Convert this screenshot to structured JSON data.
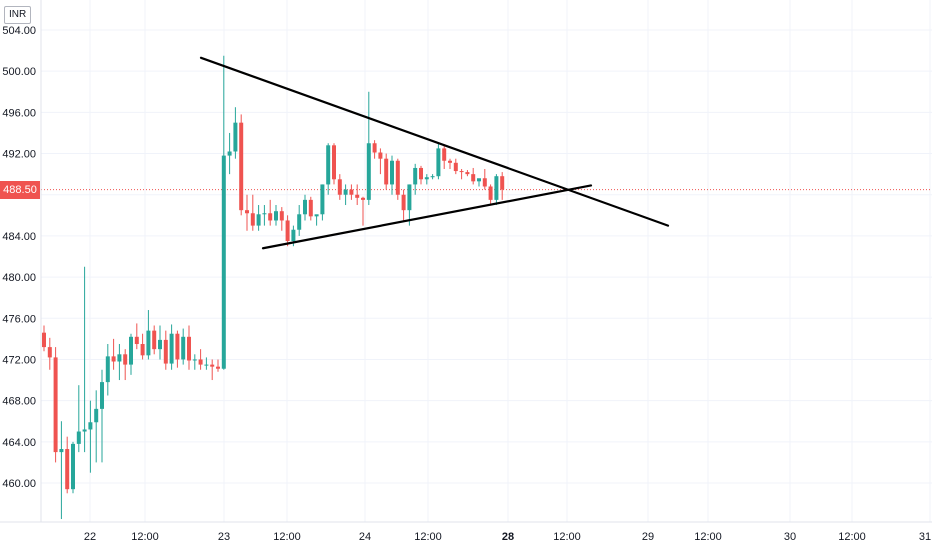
{
  "chart_data": {
    "type": "candlestick",
    "currency": "INR",
    "current_price": "488.50",
    "colors": {
      "up": "#26a69a",
      "down": "#ef5350",
      "trendline": "#000000",
      "price_line": "#ef5350",
      "grid": "#f0f3fa"
    },
    "ylim": [
      456.5,
      505.5
    ],
    "y_ticks": [
      460,
      464,
      468,
      472,
      476,
      480,
      484,
      488,
      492,
      496,
      500,
      504
    ],
    "y_tick_labels": [
      "460.00",
      "464.00",
      "468.00",
      "472.00",
      "476.00",
      "480.00",
      "484.00",
      "488.00",
      "492.00",
      "496.00",
      "500.00",
      "504.00"
    ],
    "x_ticks": [
      {
        "label": "22",
        "bold": false
      },
      {
        "label": "12:00",
        "bold": false
      },
      {
        "label": "23",
        "bold": false
      },
      {
        "label": "12:00",
        "bold": false
      },
      {
        "label": "24",
        "bold": false
      },
      {
        "label": "12:00",
        "bold": false
      },
      {
        "label": "28",
        "bold": true
      },
      {
        "label": "12:00",
        "bold": false
      },
      {
        "label": "29",
        "bold": false
      },
      {
        "label": "12:00",
        "bold": false
      },
      {
        "label": "30",
        "bold": false
      },
      {
        "label": "12:00",
        "bold": false
      },
      {
        "label": "31",
        "bold": false
      }
    ],
    "candles": [
      [
        474.6,
        475.3,
        472.8,
        473.2
      ],
      [
        473.2,
        474.1,
        471.0,
        472.2
      ],
      [
        472.2,
        473.2,
        462.0,
        463.0
      ],
      [
        463.0,
        466.0,
        456.5,
        463.3
      ],
      [
        463.3,
        464.5,
        459.0,
        459.4
      ],
      [
        459.4,
        464.0,
        459.0,
        463.8
      ],
      [
        463.8,
        469.5,
        463.0,
        465.0
      ],
      [
        465.0,
        481.0,
        463.0,
        465.2
      ],
      [
        465.2,
        468.0,
        461.0,
        465.9
      ],
      [
        465.9,
        469.0,
        462.0,
        467.2
      ],
      [
        467.2,
        471.0,
        462.0,
        469.8
      ],
      [
        469.8,
        473.5,
        468.5,
        472.3
      ],
      [
        472.3,
        474.0,
        471.0,
        471.8
      ],
      [
        471.8,
        473.5,
        470.0,
        472.5
      ],
      [
        472.5,
        473.0,
        470.0,
        471.5
      ],
      [
        471.5,
        474.5,
        470.5,
        474.2
      ],
      [
        474.2,
        475.5,
        473.0,
        473.5
      ],
      [
        473.5,
        474.5,
        472.0,
        472.4
      ],
      [
        472.4,
        476.8,
        472.0,
        474.8
      ],
      [
        474.8,
        475.3,
        472.5,
        473.0
      ],
      [
        473.0,
        475.3,
        472.0,
        473.9
      ],
      [
        473.9,
        474.8,
        471.0,
        471.6
      ],
      [
        471.6,
        475.4,
        471.0,
        474.5
      ],
      [
        474.5,
        474.8,
        471.2,
        472.0
      ],
      [
        472.0,
        475.0,
        471.5,
        474.2
      ],
      [
        474.2,
        475.3,
        471.0,
        471.9
      ],
      [
        471.9,
        472.5,
        471.0,
        472.0
      ],
      [
        472.0,
        473.0,
        471.0,
        471.5
      ],
      [
        471.5,
        472.2,
        471.0,
        471.5
      ],
      [
        471.5,
        472.0,
        470.0,
        471.3
      ],
      [
        471.3,
        472.0,
        470.8,
        471.1
      ],
      [
        471.1,
        501.5,
        471.0,
        491.8
      ],
      [
        491.8,
        494.0,
        490.0,
        492.2
      ],
      [
        492.2,
        496.5,
        491.5,
        495.0
      ],
      [
        495.0,
        495.8,
        486.0,
        486.5
      ],
      [
        486.5,
        488.0,
        484.5,
        486.2
      ],
      [
        486.2,
        488.0,
        484.5,
        485.0
      ],
      [
        485.0,
        487.0,
        484.5,
        486.1
      ],
      [
        486.1,
        487.0,
        485.0,
        486.2
      ],
      [
        486.2,
        487.5,
        485.0,
        485.5
      ],
      [
        485.5,
        487.0,
        485.0,
        486.4
      ],
      [
        486.4,
        486.8,
        484.5,
        485.5
      ],
      [
        485.5,
        486.0,
        483.0,
        483.5
      ],
      [
        483.5,
        485.0,
        483.0,
        484.6
      ],
      [
        484.6,
        487.0,
        484.0,
        486.1
      ],
      [
        486.1,
        488.0,
        485.5,
        487.5
      ],
      [
        487.5,
        487.8,
        485.5,
        485.9
      ],
      [
        485.9,
        486.0,
        485.0,
        486.1
      ],
      [
        486.1,
        489.0,
        485.5,
        489.0
      ],
      [
        489.0,
        493.0,
        488.0,
        492.8
      ],
      [
        492.8,
        493.0,
        489.0,
        489.5
      ],
      [
        489.5,
        490.0,
        487.5,
        488.0
      ],
      [
        488.0,
        489.0,
        487.0,
        488.5
      ],
      [
        488.5,
        489.0,
        487.5,
        488.0
      ],
      [
        488.0,
        489.0,
        487.0,
        487.7
      ],
      [
        487.7,
        487.8,
        485.0,
        487.5
      ],
      [
        487.5,
        498.0,
        487.0,
        493.0
      ],
      [
        493.0,
        493.3,
        491.5,
        492.1
      ],
      [
        492.1,
        492.5,
        490.0,
        491.5
      ],
      [
        491.5,
        492.0,
        488.5,
        489.0
      ],
      [
        489.0,
        491.8,
        488.0,
        491.3
      ],
      [
        491.3,
        491.5,
        487.5,
        488.0
      ],
      [
        488.0,
        488.5,
        485.5,
        486.5
      ],
      [
        486.5,
        489.0,
        485.0,
        489.0
      ],
      [
        489.0,
        491.0,
        488.0,
        490.6
      ],
      [
        490.6,
        490.8,
        489.0,
        489.5
      ],
      [
        489.5,
        490.0,
        489.0,
        489.7
      ],
      [
        489.7,
        490.0,
        489.5,
        489.8
      ],
      [
        489.8,
        493.0,
        489.5,
        492.5
      ],
      [
        492.5,
        492.9,
        490.5,
        491.3
      ],
      [
        491.3,
        491.5,
        490.5,
        491.1
      ],
      [
        491.1,
        491.5,
        490.0,
        490.3
      ],
      [
        490.3,
        490.5,
        489.5,
        490.2
      ],
      [
        490.2,
        490.4,
        489.8,
        490.0
      ],
      [
        490.0,
        490.6,
        489.0,
        489.3
      ],
      [
        489.3,
        489.5,
        488.8,
        489.6
      ],
      [
        489.6,
        490.5,
        488.5,
        488.8
      ],
      [
        488.8,
        489.0,
        487.0,
        487.5
      ],
      [
        487.5,
        490.0,
        487.0,
        489.8
      ],
      [
        489.8,
        490.2,
        487.5,
        488.5
      ]
    ],
    "trendlines": [
      {
        "name": "upper",
        "from": [
          0,
          501.3
        ],
        "to": [
          1,
          485.0
        ]
      },
      {
        "name": "lower",
        "from": [
          0,
          482.8
        ],
        "to": [
          1,
          488.9
        ]
      }
    ]
  }
}
